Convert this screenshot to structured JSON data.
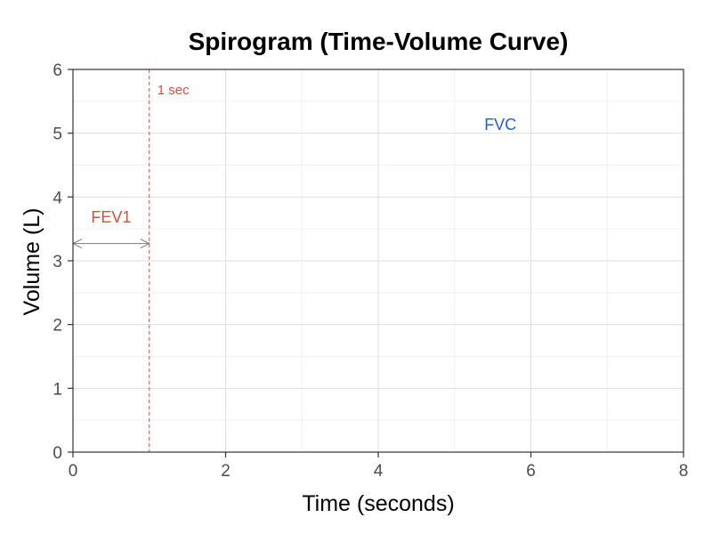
{
  "chart_data": {
    "type": "line",
    "title": "Spirogram (Time-Volume Curve)",
    "xlabel": "Time (seconds)",
    "ylabel": "Volume (L)",
    "xlim": [
      0,
      8
    ],
    "ylim": [
      0,
      6
    ],
    "x_ticks": [
      0,
      2,
      4,
      6,
      8
    ],
    "y_ticks": [
      0,
      1,
      2,
      3,
      4,
      5,
      6
    ],
    "grid": true,
    "series": [],
    "annotations": {
      "vline": {
        "x": 1,
        "label": "1 sec",
        "color": "#e04a3a"
      },
      "fev1": {
        "label": "FEV1",
        "x_from": 0,
        "x_to": 1,
        "y": 3.27,
        "label_x": 0.5,
        "label_y": 3.6,
        "color": "#e04a3a"
      },
      "fvc": {
        "label": "FVC",
        "x": 5.6,
        "y": 5.05,
        "color": "#1f5fd6"
      }
    }
  }
}
